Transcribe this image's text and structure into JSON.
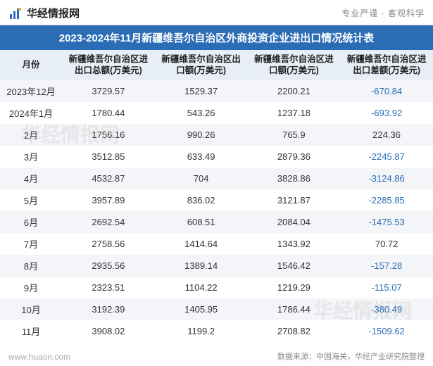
{
  "header": {
    "brand": "华经情报网",
    "tagline": "专业严谨 · 客观科学"
  },
  "title": "2023-2024年11月新疆维吾尔自治区外商投资企业进出口情况统计表",
  "columns": [
    "月份",
    "新疆维吾尔自治区进出口总额(万美元)",
    "新疆维吾尔自治区出口额(万美元)",
    "新疆维吾尔自治区进口额(万美元)",
    "新疆维吾尔自治区进出口差额(万美元)"
  ],
  "rows": [
    {
      "month": "2023年12月",
      "total": "3729.57",
      "export": "1529.37",
      "import": "2200.21",
      "diff": "-670.84",
      "diff_neg": true
    },
    {
      "month": "2024年1月",
      "total": "1780.44",
      "export": "543.26",
      "import": "1237.18",
      "diff": "-693.92",
      "diff_neg": true
    },
    {
      "month": "2月",
      "total": "1756.16",
      "export": "990.26",
      "import": "765.9",
      "diff": "224.36",
      "diff_neg": false
    },
    {
      "month": "3月",
      "total": "3512.85",
      "export": "633.49",
      "import": "2879.36",
      "diff": "-2245.87",
      "diff_neg": true
    },
    {
      "month": "4月",
      "total": "4532.87",
      "export": "704",
      "import": "3828.86",
      "diff": "-3124.86",
      "diff_neg": true
    },
    {
      "month": "5月",
      "total": "3957.89",
      "export": "836.02",
      "import": "3121.87",
      "diff": "-2285.85",
      "diff_neg": true
    },
    {
      "month": "6月",
      "total": "2692.54",
      "export": "608.51",
      "import": "2084.04",
      "diff": "-1475.53",
      "diff_neg": true
    },
    {
      "month": "7月",
      "total": "2758.56",
      "export": "1414.64",
      "import": "1343.92",
      "diff": "70.72",
      "diff_neg": false
    },
    {
      "month": "8月",
      "total": "2935.56",
      "export": "1389.14",
      "import": "1546.42",
      "diff": "-157.28",
      "diff_neg": true
    },
    {
      "month": "9月",
      "total": "2323.51",
      "export": "1104.22",
      "import": "1219.29",
      "diff": "-115.07",
      "diff_neg": true
    },
    {
      "month": "10月",
      "total": "3192.39",
      "export": "1405.95",
      "import": "1786.44",
      "diff": "-380.49",
      "diff_neg": true
    },
    {
      "month": "11月",
      "total": "3908.02",
      "export": "1199.2",
      "import": "2708.82",
      "diff": "-1509.62",
      "diff_neg": true
    }
  ],
  "footer": {
    "site": "www.huaon.com",
    "source": "数据来源：中国海关，华经产业研究院整理"
  },
  "watermark": "华经情报网",
  "colors": {
    "title_bg": "#2b6db5",
    "header_row_bg": "#e8eef6",
    "row_odd_bg": "#f3f5f8",
    "row_even_bg": "#ffffff",
    "neg_color": "#2b6db5",
    "text_color": "#333333"
  }
}
